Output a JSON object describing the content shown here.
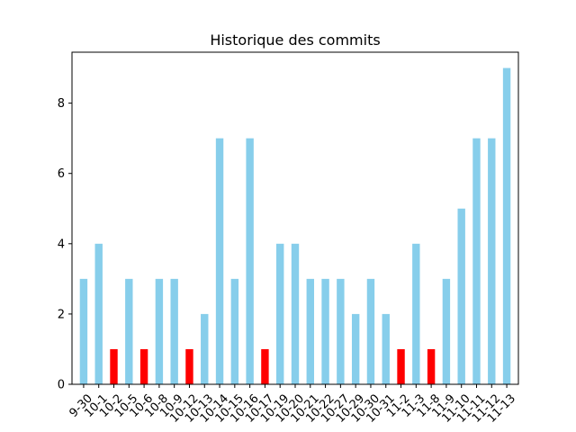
{
  "chart_data": {
    "type": "bar",
    "title": "Historique des commits",
    "xlabel": "",
    "ylabel": "",
    "categories": [
      "9-30",
      "10-1",
      "10-2",
      "10-5",
      "10-6",
      "10-8",
      "10-9",
      "10-12",
      "10-13",
      "10-14",
      "10-15",
      "10-16",
      "10-17",
      "10-19",
      "10-20",
      "10-21",
      "10-22",
      "10-27",
      "10-29",
      "10-30",
      "10-31",
      "11-2",
      "11-3",
      "11-8",
      "11-9",
      "11-10",
      "11-11",
      "11-12",
      "11-13"
    ],
    "values": [
      3,
      4,
      1,
      3,
      1,
      3,
      3,
      1,
      2,
      7,
      3,
      7,
      1,
      4,
      4,
      3,
      3,
      3,
      2,
      3,
      2,
      1,
      4,
      1,
      3,
      5,
      7,
      7,
      9
    ],
    "ylim": [
      0,
      9.45
    ],
    "yticks": [
      0,
      2,
      4,
      6,
      8
    ],
    "grid": false,
    "colors": {
      "default_bar": "#87ceeb",
      "low_bar": "#ff0000",
      "axis": "#000000"
    }
  }
}
